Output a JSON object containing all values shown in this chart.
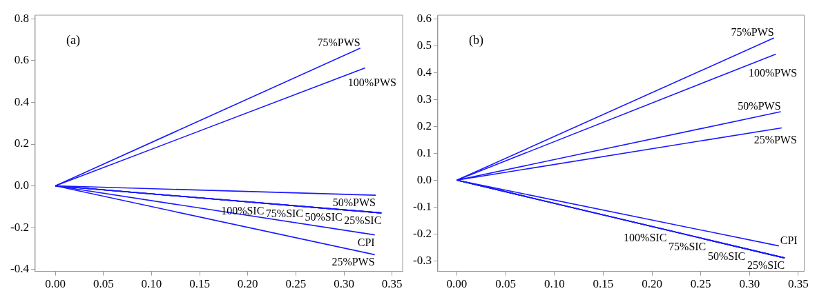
{
  "chart_data": [
    {
      "type": "line",
      "annotations": [
        "(a)"
      ],
      "xlim": [
        -0.021,
        0.361
      ],
      "ylim": [
        -0.41,
        0.818
      ],
      "xticks": [
        {
          "value": 0,
          "label": "0.00"
        },
        0.05,
        {
          "value": 0.1,
          "label": "0.10"
        },
        0.15,
        {
          "value": 0.2,
          "label": "0.20"
        },
        0.25,
        {
          "value": 0.3,
          "label": "0.30"
        },
        0.35
      ],
      "yticks": [
        -0.4,
        -0.2,
        {
          "value": 0,
          "label": "0.0"
        },
        0.2,
        0.4,
        0.6,
        0.8
      ],
      "legend": false,
      "grid": false,
      "marker": "none",
      "line_style": "solid",
      "series": [
        {
          "name": "75%PWS",
          "color": "#1a1aff",
          "x": [
            0,
            0.317
          ],
          "values": [
            0,
            0.66
          ]
        },
        {
          "name": "100%PWS",
          "color": "#1a1aff",
          "x": [
            0,
            0.322
          ],
          "values": [
            0,
            0.565
          ]
        },
        {
          "name": "50%PWS",
          "color": "#1a1aff",
          "x": [
            0,
            0.333
          ],
          "values": [
            0,
            -0.045
          ]
        },
        {
          "name": "25%SIC",
          "color": "#1a1aff",
          "x": [
            0,
            0.339
          ],
          "values": [
            0,
            -0.13
          ]
        },
        {
          "name": "50%SIC",
          "color": "#1a1aff",
          "x": [
            0,
            0.339
          ],
          "values": [
            0,
            -0.13
          ]
        },
        {
          "name": "75%SIC",
          "color": "#1a1aff",
          "x": [
            0,
            0.339
          ],
          "values": [
            0,
            -0.13
          ]
        },
        {
          "name": "100%SIC",
          "color": "#1a1aff",
          "x": [
            0,
            0.339
          ],
          "values": [
            0,
            -0.13
          ]
        },
        {
          "name": "CPI",
          "color": "#1a1aff",
          "x": [
            0,
            0.332
          ],
          "values": [
            0,
            -0.235
          ]
        },
        {
          "name": "25%PWS",
          "color": "#1a1aff",
          "x": [
            0,
            0.332
          ],
          "values": [
            0,
            -0.33
          ]
        }
      ]
    },
    {
      "type": "line",
      "annotations": [
        "(b)"
      ],
      "xlim": [
        -0.0195,
        0.356
      ],
      "ylim": [
        -0.34,
        0.615
      ],
      "xticks": [
        {
          "value": 0,
          "label": "0.00"
        },
        0.05,
        {
          "value": 0.1,
          "label": "0.10"
        },
        0.15,
        {
          "value": 0.2,
          "label": "0.20"
        },
        0.25,
        {
          "value": 0.3,
          "label": "0.30"
        },
        0.35
      ],
      "yticks": [
        -0.3,
        -0.2,
        -0.1,
        {
          "value": 0,
          "label": "0.0"
        },
        0.1,
        0.2,
        0.3,
        0.4,
        0.5,
        0.6
      ],
      "legend": false,
      "grid": false,
      "marker": "none",
      "line_style": "solid",
      "series": [
        {
          "name": "75%PWS",
          "color": "#1a1aff",
          "x": [
            0,
            0.325
          ],
          "values": [
            0,
            0.53
          ]
        },
        {
          "name": "100%PWS",
          "color": "#1a1aff",
          "x": [
            0,
            0.327
          ],
          "values": [
            0,
            0.47
          ]
        },
        {
          "name": "50%PWS",
          "color": "#1a1aff",
          "x": [
            0,
            0.332
          ],
          "values": [
            0,
            0.255
          ]
        },
        {
          "name": "25%PWS",
          "color": "#1a1aff",
          "x": [
            0,
            0.333
          ],
          "values": [
            0,
            0.195
          ]
        },
        {
          "name": "CPI",
          "color": "#1a1aff",
          "x": [
            0,
            0.33
          ],
          "values": [
            0,
            -0.245
          ]
        },
        {
          "name": "25%SIC",
          "color": "#1a1aff",
          "x": [
            0,
            0.336
          ],
          "values": [
            0,
            -0.29
          ]
        },
        {
          "name": "50%SIC",
          "color": "#1a1aff",
          "x": [
            0,
            0.336
          ],
          "values": [
            0,
            -0.29
          ]
        },
        {
          "name": "75%SIC",
          "color": "#1a1aff",
          "x": [
            0,
            0.336
          ],
          "values": [
            0,
            -0.29
          ]
        },
        {
          "name": "100%SIC",
          "color": "#1a1aff",
          "x": [
            0,
            0.336
          ],
          "values": [
            0,
            -0.29
          ]
        }
      ]
    }
  ]
}
